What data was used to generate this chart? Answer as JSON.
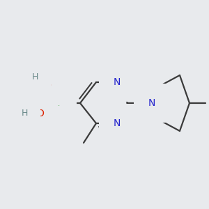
{
  "background_color": "#e8eaed",
  "bond_color": "#3a3a3a",
  "bond_width": 1.6,
  "atoms": {
    "B": {
      "color": "#1a9a1a"
    },
    "O": {
      "color": "#dd2200"
    },
    "H": {
      "color": "#6a8a8a"
    },
    "N": {
      "color": "#2222cc"
    },
    "C": {
      "color": "#3a3a3a"
    }
  }
}
